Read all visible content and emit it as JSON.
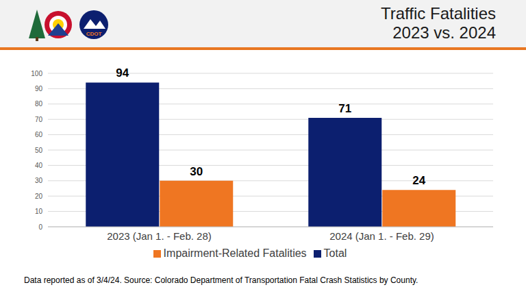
{
  "chart_data": {
    "type": "bar",
    "title": "Traffic Fatalities",
    "subtitle": "2023 vs. 2024",
    "logo_text": "CDOT",
    "categories": [
      "2023 (Jan 1. - Feb. 28)",
      "2024 (Jan 1. - Feb. 29)"
    ],
    "series": [
      {
        "name": "Total",
        "color": "#0c1f6f",
        "values": [
          94,
          71
        ]
      },
      {
        "name": "Impairment-Related Fatalities",
        "color": "#ef7622",
        "values": [
          30,
          24
        ]
      }
    ],
    "ylim": [
      0,
      100
    ],
    "yticks": [
      0,
      10,
      20,
      30,
      40,
      50,
      60,
      70,
      80,
      90,
      100
    ],
    "grid": true,
    "legend": "bottom",
    "data_labels": true,
    "note": "Data reported as of 3/4/24. Source: Colorado Department of Transportation Fatal Crash Statistics by County."
  }
}
